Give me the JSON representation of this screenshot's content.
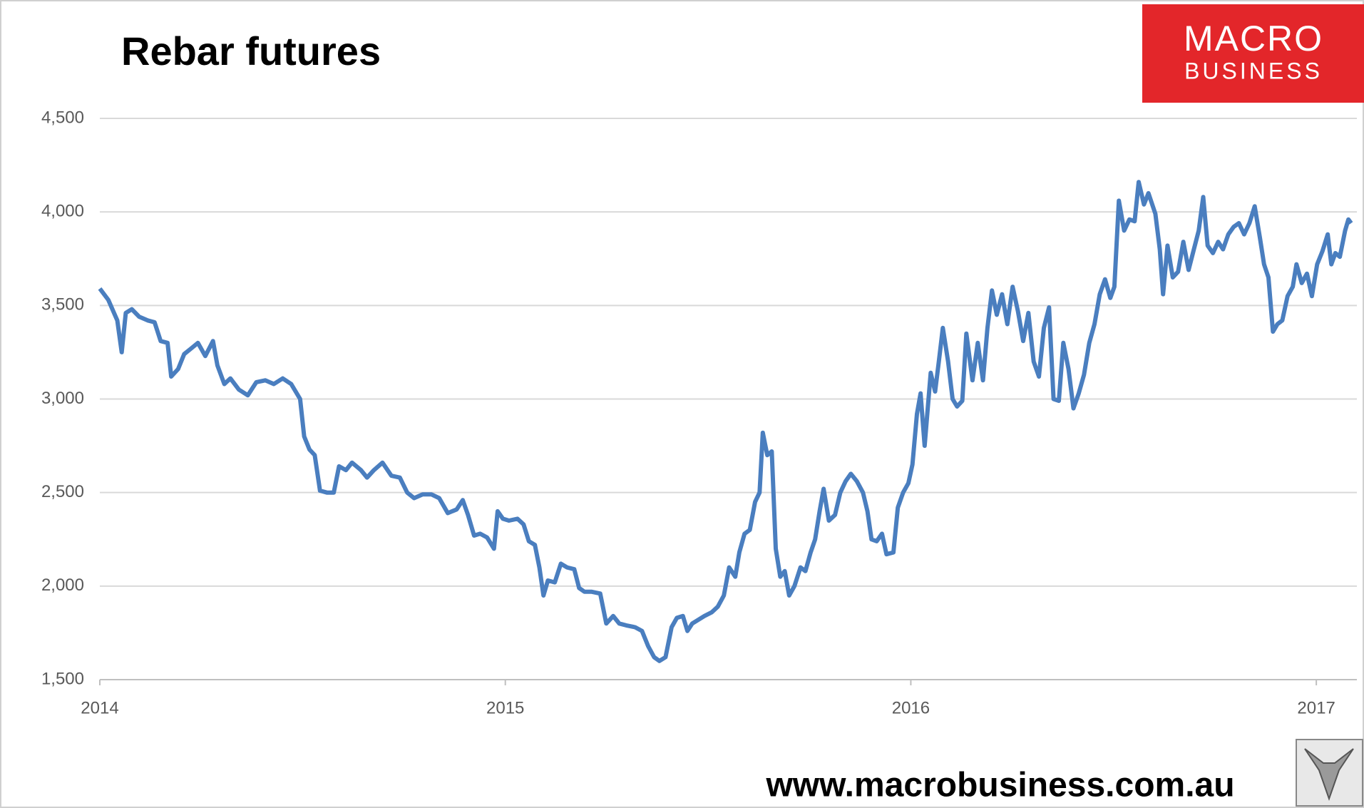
{
  "chart_data": {
    "type": "line",
    "title": "Rebar futures",
    "annotations": [
      "MACRO",
      "BUSINESS",
      "www.macrobusiness.com.au"
    ],
    "x": [
      2014.0,
      2014.021,
      2014.043,
      2014.054,
      2014.064,
      2014.079,
      2014.097,
      2014.118,
      2014.135,
      2014.15,
      2014.167,
      2014.176,
      2014.193,
      2014.208,
      2014.225,
      2014.242,
      2014.26,
      2014.279,
      2014.29,
      2014.307,
      2014.322,
      2014.343,
      2014.365,
      2014.386,
      2014.408,
      2014.429,
      2014.451,
      2014.472,
      2014.494,
      2014.504,
      2014.517,
      2014.53,
      2014.543,
      2014.56,
      2014.577,
      2014.59,
      2014.607,
      2014.622,
      2014.644,
      2014.659,
      2014.676,
      2014.697,
      2014.719,
      2014.74,
      2014.758,
      2014.775,
      2014.796,
      2014.818,
      2014.837,
      2014.858,
      2014.88,
      2014.895,
      2014.908,
      2014.923,
      2014.938,
      2014.955,
      2014.972,
      2014.981,
      2014.994,
      2015.009,
      2015.03,
      2015.045,
      2015.058,
      2015.073,
      2015.084,
      2015.094,
      2015.105,
      2015.122,
      2015.137,
      2015.152,
      2015.17,
      2015.182,
      2015.195,
      2015.212,
      2015.234,
      2015.249,
      2015.266,
      2015.281,
      2015.298,
      2015.32,
      2015.337,
      2015.352,
      2015.367,
      2015.38,
      2015.395,
      2015.41,
      2015.423,
      2015.438,
      2015.449,
      2015.461,
      2015.476,
      2015.491,
      2015.509,
      2015.524,
      2015.539,
      2015.552,
      2015.567,
      2015.577,
      2015.59,
      2015.603,
      2015.616,
      2015.627,
      2015.635,
      2015.646,
      2015.657,
      2015.667,
      2015.678,
      2015.689,
      2015.7,
      2015.713,
      2015.728,
      2015.74,
      2015.753,
      2015.764,
      2015.775,
      2015.785,
      2015.798,
      2015.813,
      2015.826,
      2015.839,
      2015.852,
      2015.867,
      2015.882,
      2015.893,
      2015.903,
      2015.916,
      2015.929,
      2015.94,
      2015.957,
      2015.968,
      2015.981,
      2015.994,
      2016.004,
      2016.015,
      2016.024,
      2016.034,
      2016.049,
      2016.06,
      2016.069,
      2016.079,
      2016.092,
      2016.103,
      2016.114,
      2016.127,
      2016.137,
      2016.152,
      2016.165,
      2016.178,
      2016.189,
      2016.2,
      2016.212,
      2016.225,
      2016.238,
      2016.251,
      2016.264,
      2016.277,
      2016.29,
      2016.303,
      2016.316,
      2016.328,
      2016.341,
      2016.352,
      2016.365,
      2016.376,
      2016.389,
      2016.401,
      2016.414,
      2016.427,
      2016.44,
      2016.453,
      2016.466,
      2016.479,
      2016.492,
      2016.502,
      2016.513,
      2016.526,
      2016.539,
      2016.552,
      2016.562,
      2016.575,
      2016.586,
      2016.603,
      2016.614,
      2016.622,
      2016.633,
      2016.646,
      2016.659,
      2016.672,
      2016.685,
      2016.698,
      2016.71,
      2016.721,
      2016.732,
      2016.745,
      2016.758,
      2016.77,
      2016.783,
      2016.796,
      2016.809,
      2016.822,
      2016.835,
      2016.848,
      2016.861,
      2016.871,
      2016.882,
      2016.893,
      2016.904,
      2016.916,
      2016.929,
      2016.942,
      2016.951,
      2016.964,
      2016.977,
      2016.989,
      2017.002,
      2017.015,
      2017.028,
      2017.037,
      2017.047,
      2017.058,
      2017.071,
      2017.079,
      2017.086
    ],
    "series": [
      {
        "color": "#4a7ebf",
        "values": [
          3590,
          3530,
          3420,
          3250,
          3460,
          3480,
          3440,
          3420,
          3410,
          3310,
          3300,
          3120,
          3160,
          3240,
          3270,
          3300,
          3230,
          3310,
          3180,
          3080,
          3110,
          3050,
          3020,
          3090,
          3100,
          3080,
          3110,
          3080,
          3000,
          2800,
          2730,
          2700,
          2510,
          2500,
          2500,
          2640,
          2620,
          2660,
          2620,
          2580,
          2620,
          2660,
          2590,
          2580,
          2500,
          2470,
          2490,
          2490,
          2470,
          2390,
          2410,
          2460,
          2380,
          2270,
          2280,
          2260,
          2200,
          2400,
          2360,
          2350,
          2360,
          2330,
          2240,
          2220,
          2100,
          1950,
          2030,
          2020,
          2120,
          2100,
          2090,
          1990,
          1970,
          1970,
          1960,
          1800,
          1840,
          1800,
          1790,
          1780,
          1760,
          1680,
          1620,
          1600,
          1620,
          1780,
          1830,
          1840,
          1760,
          1800,
          1820,
          1840,
          1860,
          1890,
          1950,
          2100,
          2050,
          2180,
          2280,
          2300,
          2450,
          2500,
          2820,
          2700,
          2720,
          2200,
          2050,
          2080,
          1950,
          2000,
          2100,
          2080,
          2180,
          2250,
          2400,
          2520,
          2350,
          2380,
          2500,
          2560,
          2600,
          2560,
          2500,
          2400,
          2250,
          2240,
          2280,
          2170,
          2180,
          2420,
          2500,
          2550,
          2650,
          2920,
          3030,
          2750,
          3140,
          3040,
          3200,
          3380,
          3200,
          3000,
          2960,
          2990,
          3350,
          3100,
          3300,
          3100,
          3380,
          3580,
          3450,
          3560,
          3400,
          3600,
          3470,
          3310,
          3460,
          3200,
          3120,
          3380,
          3490,
          3000,
          2990,
          3300,
          3160,
          2950,
          3030,
          3130,
          3300,
          3400,
          3560,
          3640,
          3540,
          3600,
          4060,
          3900,
          3960,
          3950,
          4160,
          4040,
          4100,
          3990,
          3800,
          3560,
          3820,
          3650,
          3680,
          3840,
          3690,
          3800,
          3900,
          4080,
          3820,
          3780,
          3840,
          3800,
          3880,
          3920,
          3940,
          3880,
          3940,
          4030,
          3860,
          3720,
          3650,
          3360,
          3400,
          3420,
          3550,
          3600,
          3720,
          3620,
          3670,
          3550,
          3720,
          3790,
          3880,
          3720,
          3780,
          3760,
          3900,
          3960,
          3940
        ]
      }
    ],
    "xlim": [
      2014,
      2017.1
    ],
    "xticks": [
      2014,
      2015,
      2016,
      2017
    ],
    "ylim": [
      1500,
      4500
    ],
    "yticks": [
      {
        "value": 1500,
        "label": "1,500"
      },
      {
        "value": 2000,
        "label": "2,000"
      },
      {
        "value": 2500,
        "label": "2,500"
      },
      {
        "value": 3000,
        "label": "3,000"
      },
      {
        "value": 3500,
        "label": "3,500"
      },
      {
        "value": 4000,
        "label": "4,000"
      },
      {
        "value": 4500,
        "label": "4,500"
      }
    ],
    "grid": true
  }
}
